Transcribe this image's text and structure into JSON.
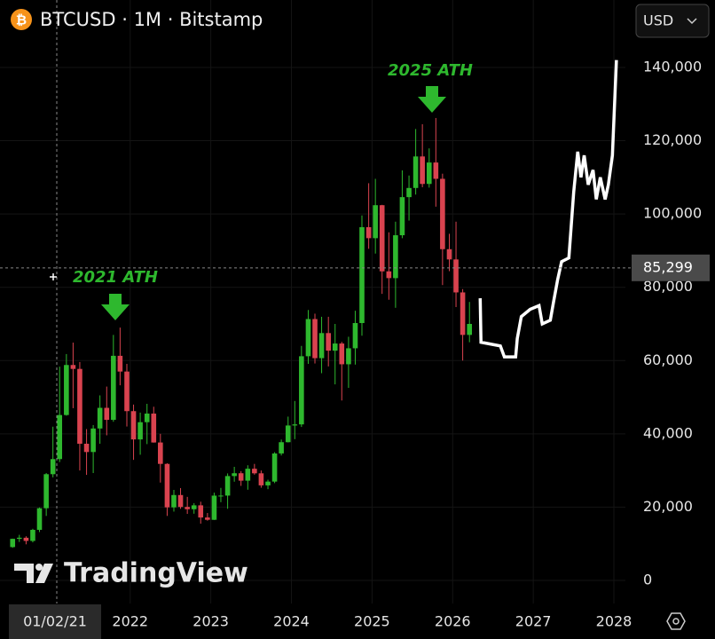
{
  "chart_data": {
    "type": "candlestick",
    "title": "BTCUSD · 1M · Bitstamp",
    "currency": "USD",
    "watermark": "TradingView",
    "crosshair_date": "01/02/21",
    "last_price": {
      "value": 85299,
      "label": "85,299"
    },
    "annotations": [
      {
        "text": "2021 ATH"
      },
      {
        "text": "2025 ATH"
      }
    ],
    "up_color": "#2eb82e",
    "down_color": "#d9434f",
    "x": [
      2020.5,
      2020.583,
      2020.667,
      2020.75,
      2020.833,
      2020.917,
      2021,
      2021.083,
      2021.167,
      2021.25,
      2021.333,
      2021.417,
      2021.5,
      2021.583,
      2021.667,
      2021.75,
      2021.833,
      2021.917,
      2022,
      2022.083,
      2022.167,
      2022.25,
      2022.333,
      2022.417,
      2022.5,
      2022.583,
      2022.667,
      2022.75,
      2022.833,
      2022.917,
      2023,
      2023.083,
      2023.167,
      2023.25,
      2023.333,
      2023.417,
      2023.5,
      2023.583,
      2023.667,
      2023.75,
      2023.833,
      2023.917,
      2024,
      2024.083,
      2024.167,
      2024.25,
      2024.333,
      2024.417,
      2024.5,
      2024.583,
      2024.667,
      2024.75,
      2024.833,
      2024.917,
      2025,
      2025.083,
      2025.167,
      2025.25,
      2025.333,
      2025.417,
      2025.5,
      2025.583,
      2025.667,
      2025.75,
      2025.833,
      2025.917,
      2026,
      2026.083,
      2026.167
    ],
    "open": [
      9100,
      11350,
      11650,
      10780,
      13800,
      19700,
      28990,
      33110,
      45140,
      58790,
      57720,
      37300,
      35040,
      41460,
      47100,
      43820,
      61300,
      57000,
      46200,
      38480,
      43180,
      45530,
      37640,
      31800,
      19940,
      23300,
      20050,
      19430,
      20490,
      17170,
      16540,
      23140,
      23150,
      28480,
      29250,
      27220,
      30480,
      29230,
      25940,
      26970,
      34650,
      37720,
      42280,
      42580,
      61180,
      71330,
      60660,
      67500,
      62700,
      64650,
      58990,
      63350,
      70240,
      96400,
      93400,
      102400,
      84350,
      82500,
      94200,
      104600,
      107100,
      115700,
      108200,
      114050,
      109600,
      90400,
      87600,
      78600,
      67000
    ],
    "high": [
      11400,
      12450,
      12050,
      14100,
      19900,
      29300,
      41950,
      58350,
      61780,
      64900,
      59600,
      41300,
      42400,
      50500,
      52900,
      67000,
      69000,
      59100,
      47990,
      45800,
      48200,
      47400,
      40000,
      31980,
      24700,
      25200,
      22800,
      21100,
      21480,
      18400,
      23960,
      25250,
      29200,
      31000,
      29830,
      31430,
      31800,
      30000,
      27480,
      35000,
      38450,
      44700,
      48970,
      64000,
      73800,
      72800,
      71950,
      71950,
      70000,
      65100,
      66500,
      73600,
      99600,
      108400,
      109600,
      102500,
      95000,
      97900,
      111900,
      110500,
      123200,
      124500,
      117900,
      126200,
      111000,
      94600,
      97900,
      79500,
      76000
    ],
    "low": [
      8900,
      10500,
      9850,
      10380,
      13200,
      17600,
      28130,
      32300,
      44950,
      47000,
      30000,
      28800,
      29300,
      37300,
      39600,
      43300,
      53250,
      42000,
      32900,
      34300,
      37200,
      37600,
      26700,
      17600,
      18780,
      19540,
      18150,
      18200,
      15480,
      16300,
      16500,
      21350,
      19550,
      26940,
      25800,
      24750,
      28860,
      25300,
      24900,
      26550,
      34100,
      37650,
      38550,
      41880,
      59100,
      59200,
      56550,
      58400,
      53500,
      49100,
      52550,
      58900,
      66800,
      90500,
      89200,
      78200,
      76600,
      74400,
      93400,
      98200,
      105300,
      107300,
      107200,
      102000,
      80600,
      84400,
      74600,
      60000,
      65000
    ],
    "close": [
      11350,
      11650,
      10780,
      13800,
      19700,
      28990,
      33110,
      45140,
      58790,
      57720,
      37300,
      35040,
      41460,
      47100,
      43820,
      61300,
      57000,
      46200,
      38480,
      43180,
      45530,
      37640,
      31800,
      19940,
      23300,
      20050,
      19430,
      20490,
      17170,
      16540,
      23140,
      23150,
      28480,
      29250,
      27220,
      30480,
      29230,
      25940,
      26970,
      34650,
      37720,
      42280,
      42580,
      61180,
      71330,
      60660,
      67500,
      62700,
      64650,
      58990,
      63350,
      70240,
      96400,
      93400,
      102400,
      84350,
      82500,
      94200,
      104600,
      107100,
      115700,
      108200,
      114050,
      109600,
      90400,
      87600,
      78600,
      67000,
      70000
    ],
    "projection": {
      "color": "#ffffff",
      "x": [
        2026.3,
        2026.31,
        2026.55,
        2026.6,
        2026.74,
        2026.76,
        2026.81,
        2026.92,
        2027.03,
        2027.07,
        2027.17,
        2027.21,
        2027.26,
        2027.31,
        2027.4,
        2027.46,
        2027.51,
        2027.55,
        2027.59,
        2027.64,
        2027.7,
        2027.74,
        2027.79,
        2027.85,
        2027.89,
        2027.94,
        2027.99
      ],
      "values": [
        77000,
        65000,
        64000,
        61000,
        61000,
        66000,
        72000,
        74000,
        75000,
        70000,
        71000,
        76000,
        82000,
        87000,
        88000,
        106000,
        117000,
        110000,
        116000,
        108000,
        112000,
        104000,
        110000,
        104000,
        108000,
        116000,
        142000
      ]
    },
    "xlim": [
      2020.385,
      2028.143
    ],
    "xticks": [
      2022,
      2023,
      2024,
      2025,
      2026,
      2027,
      2028
    ],
    "ylim": [
      -6300,
      158400
    ],
    "yticks": [
      0,
      {
        "value": 20000,
        "label": "20,000"
      },
      {
        "value": 40000,
        "label": "40,000"
      },
      {
        "value": 60000,
        "label": "60,000"
      },
      {
        "value": 80000,
        "label": "80,000"
      },
      {
        "value": 100000,
        "label": "100,000"
      },
      {
        "value": 120000,
        "label": "120,000"
      },
      {
        "value": 140000,
        "label": "140,000"
      }
    ],
    "grid": true
  }
}
